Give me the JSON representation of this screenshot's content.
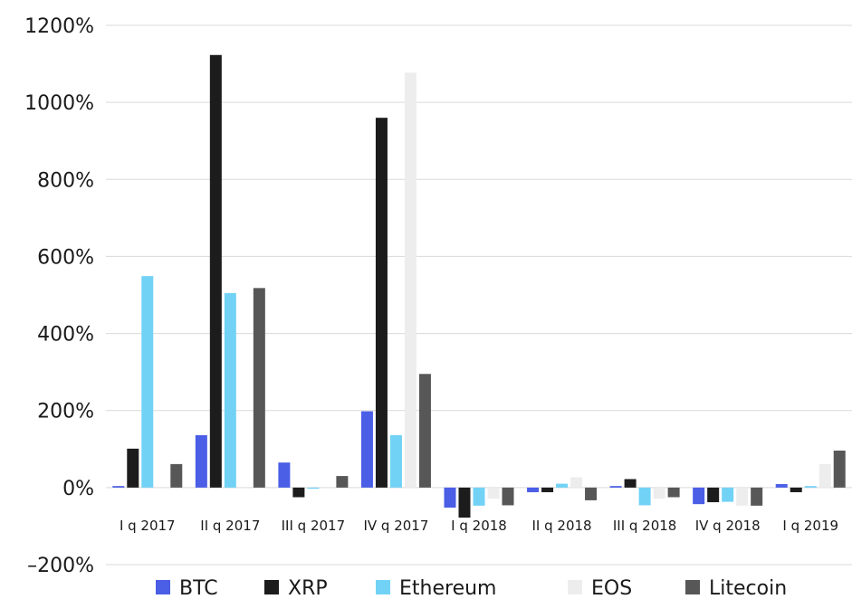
{
  "chart_data": {
    "type": "bar",
    "title": "",
    "xlabel": "",
    "ylabel": "",
    "ylim": [
      -200,
      1200
    ],
    "yticks": [
      -200,
      0,
      200,
      400,
      600,
      800,
      1000,
      1200
    ],
    "ytick_labels": [
      "–200%",
      "0%",
      "200%",
      "400%",
      "600%",
      "800%",
      "1000%",
      "1200%"
    ],
    "grid": "horizontal",
    "legend_position": "bottom",
    "categories": [
      "I q 2017",
      "II q 2017",
      "III q 2017",
      "IV q 2017",
      "I q 2018",
      "II q 2018",
      "III q 2018",
      "IV q 2018",
      "I q 2019"
    ],
    "series": [
      {
        "name": "BTC",
        "color": "#4a5ee6",
        "values": [
          4,
          136,
          65,
          198,
          -52,
          -12,
          4,
          -43,
          9
        ]
      },
      {
        "name": "XRP",
        "color": "#1c1c1c",
        "values": [
          101,
          1123,
          -25,
          960,
          -78,
          -12,
          22,
          -38,
          -12
        ]
      },
      {
        "name": "Ethereum",
        "color": "#72d2f5",
        "values": [
          549,
          505,
          -3,
          136,
          -47,
          10,
          -46,
          -37,
          4
        ]
      },
      {
        "name": "EOS",
        "color": "#ededed",
        "values": [
          0,
          0,
          0,
          1077,
          -29,
          27,
          -29,
          -47,
          61
        ]
      },
      {
        "name": "Litecoin",
        "color": "#575757",
        "values": [
          61,
          518,
          30,
          295,
          -46,
          -33,
          -25,
          -47,
          96
        ]
      }
    ]
  }
}
